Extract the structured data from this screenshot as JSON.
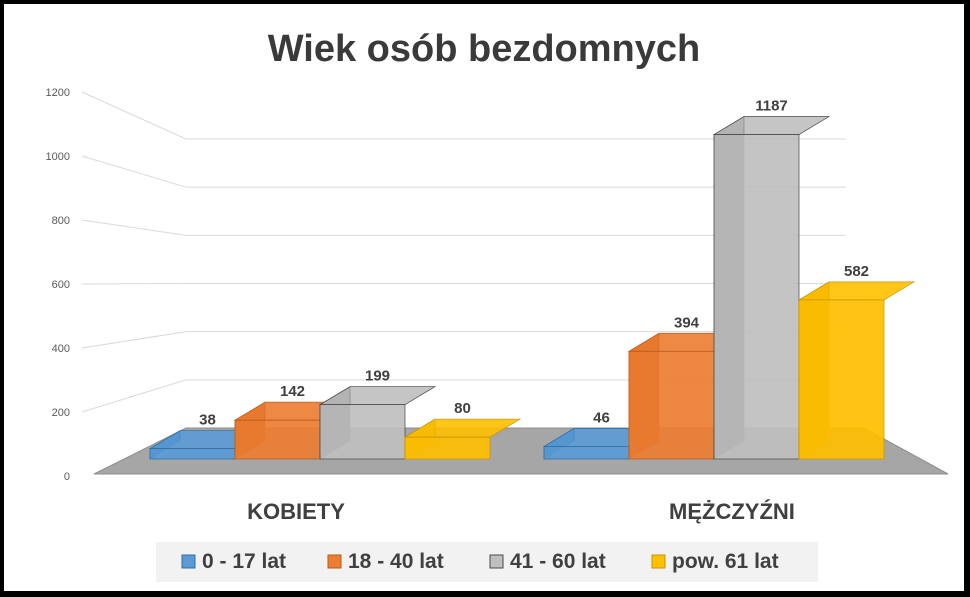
{
  "chart_data": {
    "type": "bar",
    "title": "Wiek osób bezdomnych",
    "categories": [
      "KOBIETY",
      "MĘŻCZYŹNI"
    ],
    "series": [
      {
        "name": "0 - 17 lat",
        "values": [
          38,
          46
        ]
      },
      {
        "name": "18 - 40 lat",
        "values": [
          142,
          394
        ]
      },
      {
        "name": "41 - 60 lat",
        "values": [
          199,
          1187
        ]
      },
      {
        "name": "pow. 61 lat",
        "values": [
          80,
          582
        ]
      }
    ],
    "yticks": [
      "0",
      "200",
      "400",
      "600",
      "800",
      "1000",
      "1200"
    ],
    "ylim": [
      0,
      1200
    ],
    "grid": true,
    "legend_position": "bottom",
    "colors": [
      "#5B9BD5",
      "#ED7D31",
      "#BFBFBF",
      "#FFC000"
    ],
    "side_colors": [
      "#2E6DA4",
      "#B85A1B",
      "#4A4A4A",
      "#C79500"
    ]
  }
}
